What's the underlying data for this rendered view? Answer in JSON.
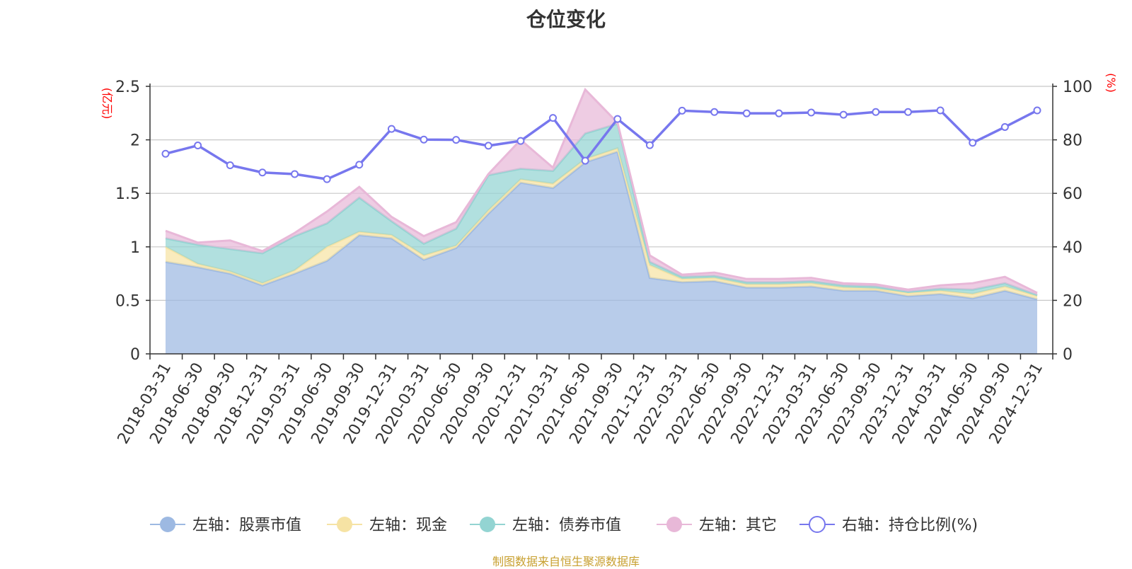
{
  "title": "仓位变化",
  "source_note": "制图数据来自恒生聚源数据库",
  "colors": {
    "stock": "#9db9e2",
    "cash": "#f6e3a4",
    "bond": "#93d4d2",
    "other": "#e8b8d8",
    "ratio": "#7777ee",
    "axis_unit": "#ff0000",
    "source": "#c8a030"
  },
  "chart_data": {
    "type": "area",
    "title": "仓位变化",
    "left_axis": {
      "unit": "(亿元)",
      "ylim": [
        0,
        2.5
      ],
      "ticks": [
        "0",
        "0.5",
        "1",
        "1.5",
        "2",
        "2.5"
      ]
    },
    "right_axis": {
      "unit": "(%)",
      "ylim": [
        0,
        100
      ],
      "ticks": [
        "0",
        "20",
        "40",
        "60",
        "80",
        "100"
      ]
    },
    "categories": [
      "2018-03-31",
      "2018-06-30",
      "2018-09-30",
      "2018-12-31",
      "2019-03-31",
      "2019-06-30",
      "2019-09-30",
      "2019-12-31",
      "2020-03-31",
      "2020-06-30",
      "2020-09-30",
      "2020-12-31",
      "2021-03-31",
      "2021-06-30",
      "2021-09-30",
      "2021-12-31",
      "2022-03-31",
      "2022-06-30",
      "2022-09-30",
      "2022-12-31",
      "2023-03-31",
      "2023-06-30",
      "2023-09-30",
      "2023-12-31",
      "2024-03-31",
      "2024-06-30",
      "2024-09-30",
      "2024-12-31"
    ],
    "grid": true,
    "legend_position": "bottom",
    "series": [
      {
        "name": "左轴：股票市值",
        "axis": "left",
        "kind": "stacked-area",
        "color_key": "stock",
        "values": [
          0.86,
          0.81,
          0.75,
          0.64,
          0.75,
          0.87,
          1.11,
          1.08,
          0.88,
          0.99,
          1.31,
          1.6,
          1.55,
          1.79,
          1.89,
          0.71,
          0.67,
          0.68,
          0.62,
          0.62,
          0.63,
          0.59,
          0.59,
          0.54,
          0.56,
          0.52,
          0.59,
          0.51
        ]
      },
      {
        "name": "左轴：现金",
        "axis": "left",
        "kind": "stacked-area",
        "color_key": "cash",
        "values": [
          0.14,
          0.03,
          0.02,
          0.02,
          0.03,
          0.13,
          0.03,
          0.03,
          0.04,
          0.02,
          0.03,
          0.03,
          0.04,
          0.03,
          0.03,
          0.12,
          0.03,
          0.03,
          0.03,
          0.03,
          0.03,
          0.03,
          0.02,
          0.03,
          0.03,
          0.04,
          0.04,
          0.03
        ]
      },
      {
        "name": "左轴：债券市值",
        "axis": "left",
        "kind": "stacked-area",
        "color_key": "bond",
        "values": [
          0.08,
          0.18,
          0.21,
          0.28,
          0.32,
          0.22,
          0.32,
          0.13,
          0.11,
          0.16,
          0.33,
          0.1,
          0.12,
          0.24,
          0.23,
          0.03,
          0.02,
          0.02,
          0.02,
          0.02,
          0.02,
          0.02,
          0.02,
          0.01,
          0.02,
          0.04,
          0.03,
          0.01
        ]
      },
      {
        "name": "左轴：其它",
        "axis": "left",
        "kind": "stacked-area",
        "color_key": "other",
        "values": [
          0.07,
          0.02,
          0.08,
          0.02,
          0.03,
          0.11,
          0.1,
          0.04,
          0.07,
          0.06,
          0.01,
          0.27,
          0.03,
          0.41,
          0.01,
          0.06,
          0.02,
          0.03,
          0.03,
          0.03,
          0.03,
          0.02,
          0.02,
          0.02,
          0.03,
          0.06,
          0.06,
          0.02
        ]
      },
      {
        "name": "右轴：持仓比例(%)",
        "axis": "right",
        "kind": "line",
        "color_key": "ratio",
        "values": [
          74.8,
          77.9,
          70.5,
          67.8,
          67.2,
          65.3,
          70.7,
          84.1,
          80.1,
          80.0,
          77.8,
          79.6,
          88.2,
          72.2,
          87.8,
          78.0,
          90.9,
          90.4,
          89.9,
          89.9,
          90.2,
          89.4,
          90.4,
          90.4,
          91.0,
          78.9,
          84.8,
          91.0
        ]
      }
    ]
  }
}
